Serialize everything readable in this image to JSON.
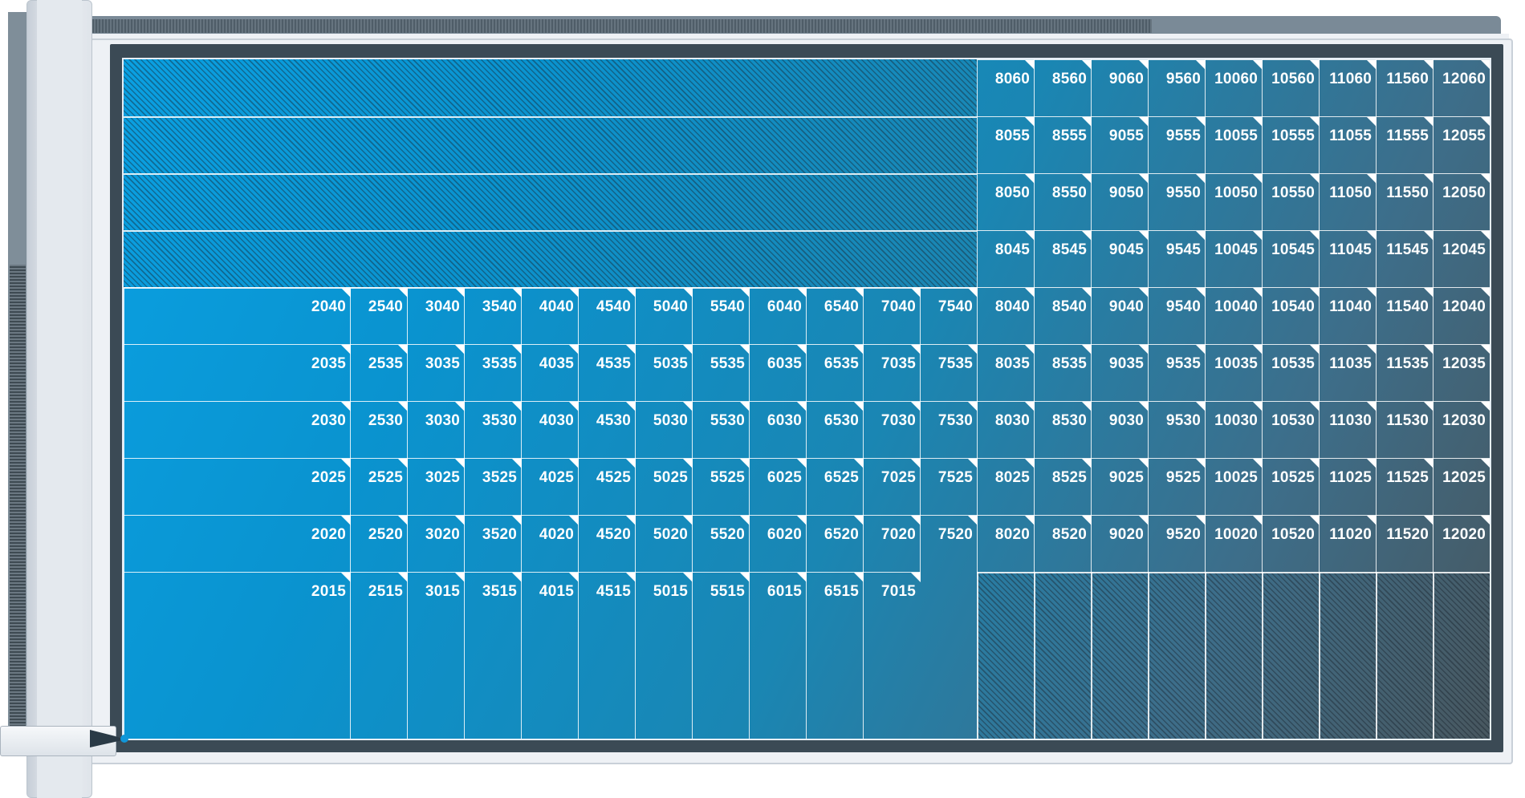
{
  "diagram": {
    "columns": [
      [
        "2040",
        "2035",
        "2030",
        "2025",
        "2020",
        "2015"
      ],
      [
        "2540",
        "2535",
        "2530",
        "2525",
        "2520",
        "2515"
      ],
      [
        "3040",
        "3035",
        "3030",
        "3025",
        "3020",
        "3015"
      ],
      [
        "3540",
        "3535",
        "3530",
        "3525",
        "3520",
        "3515"
      ],
      [
        "4040",
        "4035",
        "4030",
        "4025",
        "4020",
        "4015"
      ],
      [
        "4540",
        "4535",
        "4530",
        "4525",
        "4520",
        "4515"
      ],
      [
        "5040",
        "5035",
        "5030",
        "5025",
        "5020",
        "5015"
      ],
      [
        "5540",
        "5535",
        "5530",
        "5525",
        "5520",
        "5515"
      ],
      [
        "6040",
        "6035",
        "6030",
        "6025",
        "6020",
        "6015"
      ],
      [
        "6540",
        "6535",
        "6530",
        "6525",
        "6520",
        "6515"
      ],
      [
        "7040",
        "7035",
        "7030",
        "7025",
        "7020",
        "7015"
      ],
      [
        "7540",
        "7535",
        "7530",
        "7525",
        "7520"
      ],
      [
        "8060",
        "8055",
        "8050",
        "8045",
        "8040",
        "8035",
        "8030",
        "8025",
        "8020"
      ],
      [
        "8560",
        "8555",
        "8550",
        "8545",
        "8540",
        "8535",
        "8530",
        "8525",
        "8520"
      ],
      [
        "9060",
        "9055",
        "9050",
        "9045",
        "9040",
        "9035",
        "9030",
        "9025",
        "9020"
      ],
      [
        "9560",
        "9555",
        "9550",
        "9545",
        "9540",
        "9535",
        "9530",
        "9525",
        "9520"
      ],
      [
        "10060",
        "10055",
        "10050",
        "10045",
        "10040",
        "10035",
        "10030",
        "10025",
        "10020"
      ],
      [
        "10560",
        "10555",
        "10550",
        "10545",
        "10540",
        "10535",
        "10530",
        "10525",
        "10520"
      ],
      [
        "11060",
        "11055",
        "11050",
        "11045",
        "11040",
        "11035",
        "11030",
        "11025",
        "11020"
      ],
      [
        "11560",
        "11555",
        "11550",
        "11545",
        "11540",
        "11535",
        "11530",
        "11525",
        "11520"
      ],
      [
        "12060",
        "12055",
        "12050",
        "12045",
        "12040",
        "12035",
        "12030",
        "12025",
        "12020"
      ]
    ],
    "colors": {
      "available_light": "#0aa0e2",
      "available_dark": "#48575f",
      "cell_border": "#ffffff",
      "frame_dark": "#3b4a55"
    }
  }
}
